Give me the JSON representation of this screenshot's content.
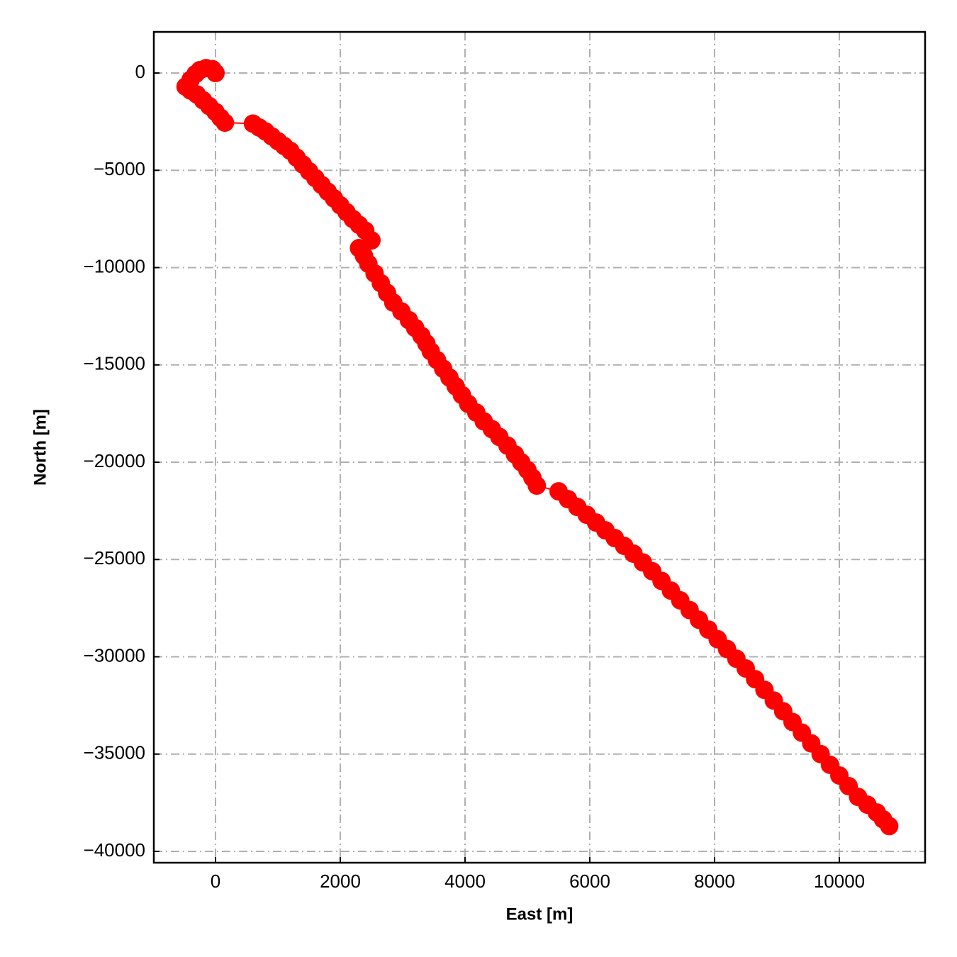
{
  "chart_data": {
    "type": "line",
    "xlabel": "East [m]",
    "ylabel": "North [m]",
    "color": "#ff0000",
    "markers": true,
    "grid": true,
    "xlim": [
      -989,
      11375
    ],
    "ylim": [
      2113,
      -40583
    ],
    "xticks": [
      0,
      2000,
      4000,
      6000,
      8000,
      10000
    ],
    "yticks": [
      0,
      {
        "value": -5000,
        "label": "−5000"
      },
      {
        "value": -10000,
        "label": "−10000"
      },
      {
        "value": -15000,
        "label": "−15000"
      },
      {
        "value": -20000,
        "label": "−20000"
      },
      {
        "value": -25000,
        "label": "−25000"
      },
      {
        "value": -30000,
        "label": "−30000"
      },
      {
        "value": -35000,
        "label": "−35000"
      },
      {
        "value": -40000,
        "label": "−40000"
      }
    ],
    "x": [
      0,
      -50,
      -150,
      -250,
      -320,
      -400,
      -480,
      -400,
      -300,
      -200,
      -100,
      0,
      80,
      150,
      600,
      700,
      800,
      900,
      1000,
      1100,
      1200,
      1300,
      1400,
      1500,
      1600,
      1700,
      1800,
      1900,
      2000,
      2100,
      2200,
      2300,
      2400,
      2500,
      2300,
      2380,
      2450,
      2550,
      2650,
      2750,
      2850,
      2980,
      3100,
      3200,
      3300,
      3380,
      3450,
      3550,
      3650,
      3750,
      3850,
      3950,
      4050,
      4180,
      4300,
      4430,
      4550,
      4680,
      4800,
      4900,
      5000,
      5080,
      5150,
      5500,
      5650,
      5800,
      5950,
      6100,
      6250,
      6400,
      6550,
      6700,
      6850,
      7000,
      7150,
      7300,
      7450,
      7600,
      7750,
      7900,
      8050,
      8200,
      8350,
      8500,
      8650,
      8800,
      8950,
      9100,
      9250,
      9400,
      9550,
      9700,
      9850,
      10000,
      10150,
      10300,
      10450,
      10600,
      10700,
      10800
    ],
    "y": [
      0,
      200,
      250,
      150,
      -50,
      -350,
      -700,
      -900,
      -1100,
      -1400,
      -1700,
      -2000,
      -2300,
      -2550,
      -2600,
      -2800,
      -3000,
      -3250,
      -3500,
      -3750,
      -4000,
      -4350,
      -4700,
      -5050,
      -5400,
      -5750,
      -6100,
      -6450,
      -6800,
      -7150,
      -7500,
      -7800,
      -8100,
      -8600,
      -9000,
      -9400,
      -9800,
      -10300,
      -10800,
      -11300,
      -11800,
      -12250,
      -12700,
      -13100,
      -13500,
      -13900,
      -14300,
      -14750,
      -15200,
      -15650,
      -16100,
      -16550,
      -17000,
      -17450,
      -17900,
      -18300,
      -18700,
      -19150,
      -19600,
      -20000,
      -20400,
      -20800,
      -21200,
      -21500,
      -21900,
      -22300,
      -22700,
      -23100,
      -23500,
      -23900,
      -24300,
      -24700,
      -25150,
      -25600,
      -26100,
      -26600,
      -27100,
      -27600,
      -28100,
      -28600,
      -29100,
      -29600,
      -30100,
      -30600,
      -31150,
      -31700,
      -32250,
      -32800,
      -33350,
      -33900,
      -34450,
      -35000,
      -35550,
      -36100,
      -36650,
      -37200,
      -37600,
      -38000,
      -38350,
      -38700
    ]
  }
}
